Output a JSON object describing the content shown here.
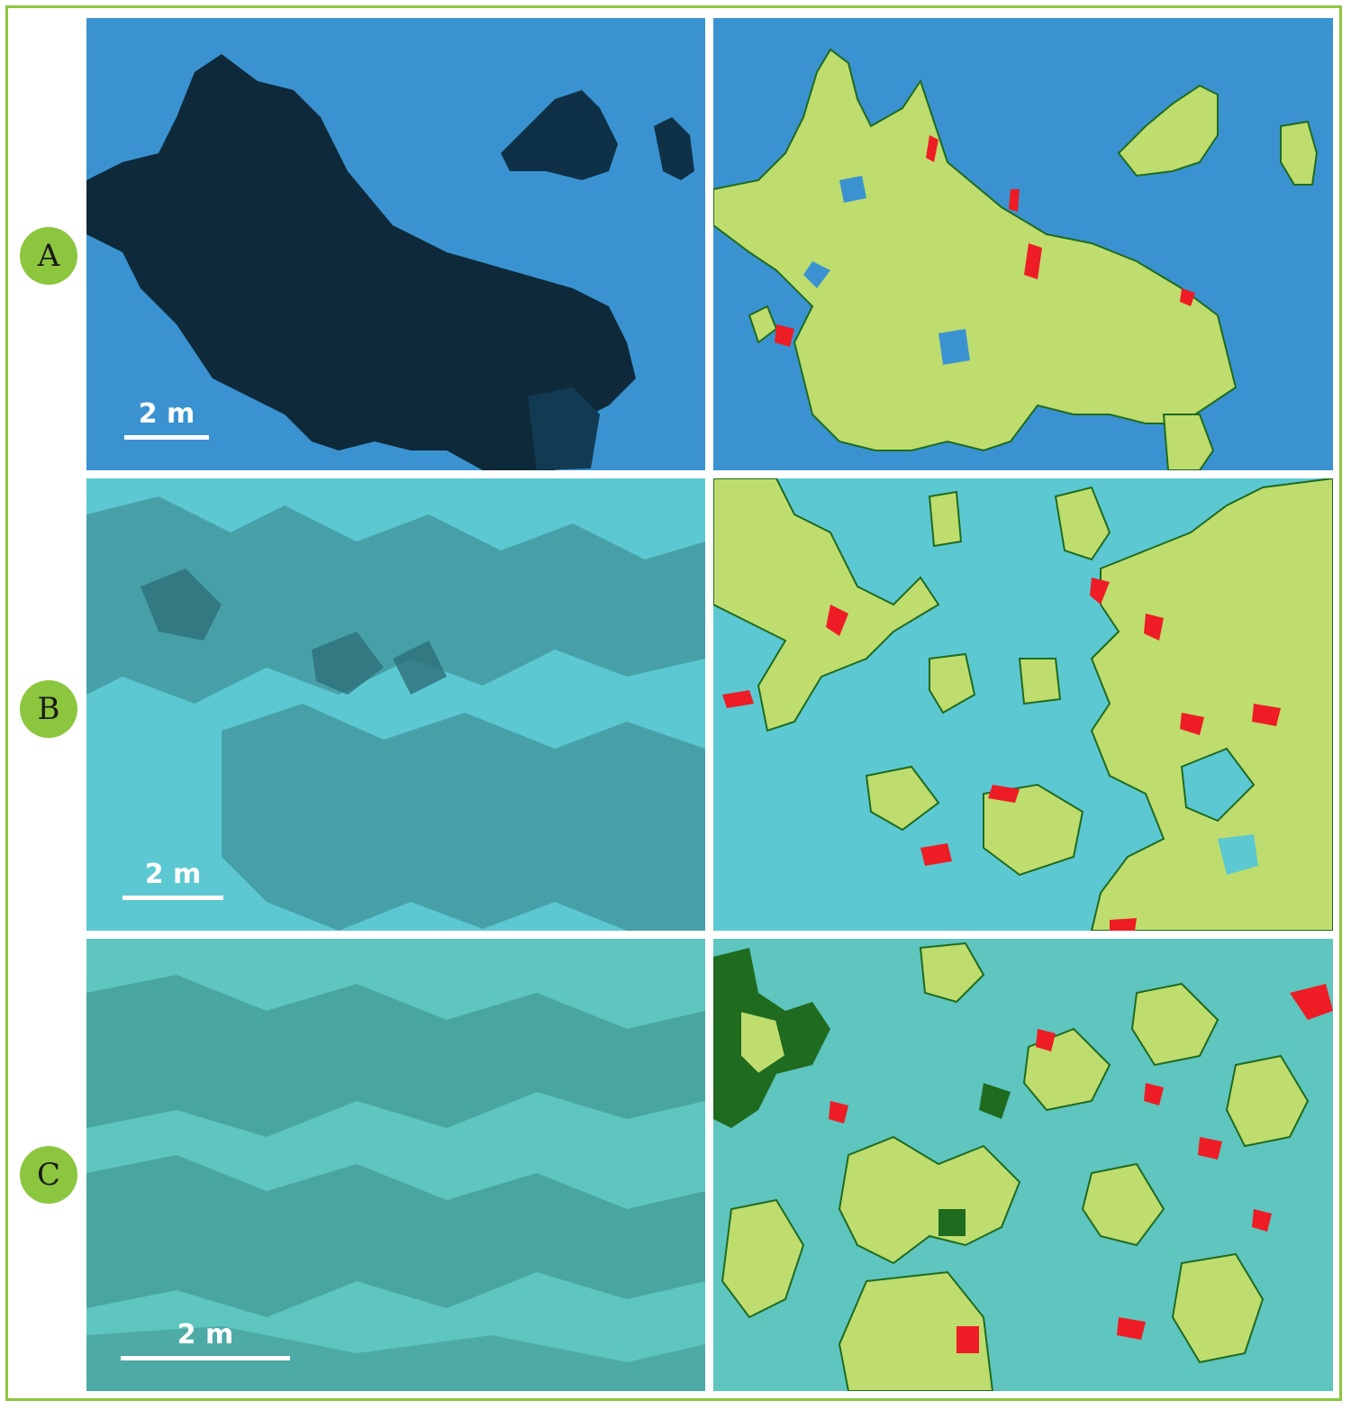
{
  "rows": [
    {
      "label": "A",
      "scale_text": "2 m"
    },
    {
      "label": "B",
      "scale_text": "2 m"
    },
    {
      "label": "C",
      "scale_text": "2 m"
    }
  ],
  "colors": {
    "border": "#8cc63f",
    "label_circle": "#8cc63f",
    "water_A": "#3a93d0",
    "water_B": "#5cc8d2",
    "water_C": "#5ec5bf",
    "seagrass_dark": "#0e2a3a",
    "class_light_green": "#bedd6e",
    "class_dark_green": "#1f6b1f",
    "class_red": "#ee1c24"
  }
}
